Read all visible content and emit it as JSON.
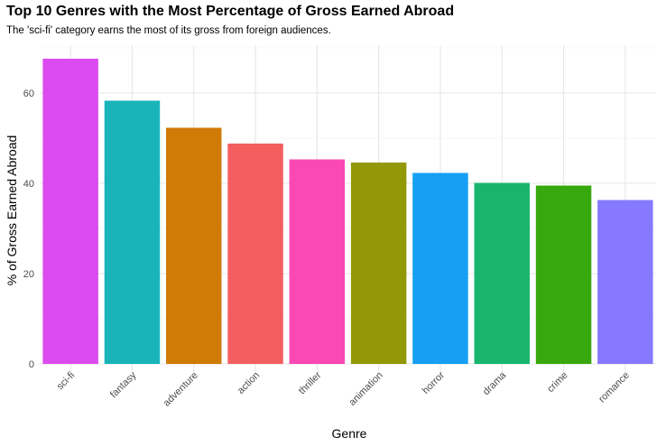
{
  "chart_data": {
    "type": "bar",
    "title": "Top 10 Genres with the Most Percentage of Gross Earned Abroad",
    "subtitle": "The 'sci-fi' category earns the most of its gross from foreign audiences.",
    "xlabel": "Genre",
    "ylabel": "% of Gross Earned Abroad",
    "categories": [
      "sci-fi",
      "fantasy",
      "adventure",
      "action",
      "thriller",
      "animation",
      "horror",
      "drama",
      "crime",
      "romance"
    ],
    "values": [
      67.6,
      58.3,
      52.3,
      48.8,
      45.3,
      44.6,
      42.3,
      40.1,
      39.5,
      36.3
    ],
    "colors": [
      "#DB4BEF",
      "#19B4BA",
      "#CF7B06",
      "#F35F5F",
      "#FA48B4",
      "#929806",
      "#179FF3",
      "#19B56E",
      "#37A80D",
      "#8679FF"
    ],
    "ylim": [
      0,
      70
    ],
    "yticks": [
      0,
      20,
      40,
      60
    ],
    "grid": true,
    "legend": "none"
  }
}
